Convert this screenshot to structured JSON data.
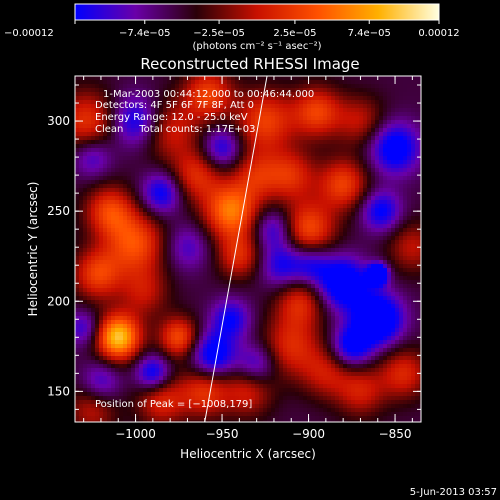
{
  "chart_data": {
    "type": "heatmap",
    "title": "Reconstructed RHESSI Image",
    "xlabel": "Heliocentric X (arcsec)",
    "ylabel": "Heliocentric Y (arcsec)",
    "xlim": [
      -1035,
      -835
    ],
    "ylim": [
      133,
      325
    ],
    "x_ticks": [
      -1000,
      -950,
      -900,
      -850
    ],
    "x_tick_labels": [
      "−1000",
      "−950",
      "−900",
      "−850"
    ],
    "y_ticks": [
      150,
      200,
      250,
      300
    ],
    "y_tick_labels": [
      "150",
      "200",
      "250",
      "300"
    ],
    "colorbar": {
      "min": -0.00012,
      "max": 0.00012,
      "ticks": [
        -0.00012,
        -7.4e-05,
        -2.5e-05,
        2.5e-05,
        7.4e-05,
        0.00012
      ],
      "tick_labels": [
        "−0.00012",
        "−7.4e−05",
        "−2.5e−05",
        "2.5e−05",
        "7.4e−05",
        "0.00012"
      ],
      "unit_label": "(photons cm⁻² s⁻¹ asec⁻²)",
      "colormap": [
        "#0000ff",
        "#6a00a8",
        "#2a0008",
        "#c81000",
        "#ff5000",
        "#ffb000",
        "#ffffe0"
      ]
    },
    "annotations": {
      "time_range": "1-Mar-2003 00:44:12.000 to 00:46:44.000",
      "detectors": "Detectors: 4F 5F 6F 7F 8F, Att 0",
      "energy_range": "Energy Range: 12.0 - 25.0 keV",
      "algorithm_counts": "Clean     Total counts: 1.17E+03",
      "peak": "Position of Peak = [−1008,179]"
    },
    "peak_position": [
      -1008,
      179
    ],
    "limb_line": [
      [
        -960,
        133
      ],
      [
        -924,
        325
      ]
    ],
    "blobs": [
      {
        "x": -1010,
        "y": 180,
        "v": 1.0,
        "r": 9
      },
      {
        "x": -1022,
        "y": 215,
        "v": 0.55,
        "r": 10
      },
      {
        "x": -1015,
        "y": 250,
        "v": 0.55,
        "r": 10
      },
      {
        "x": -1000,
        "y": 232,
        "v": 0.6,
        "r": 12
      },
      {
        "x": -995,
        "y": 205,
        "v": 0.35,
        "r": 10
      },
      {
        "x": -1028,
        "y": 300,
        "v": 0.5,
        "r": 12
      },
      {
        "x": -980,
        "y": 295,
        "v": 0.4,
        "r": 12
      },
      {
        "x": -965,
        "y": 270,
        "v": 0.45,
        "r": 10
      },
      {
        "x": -958,
        "y": 315,
        "v": 0.55,
        "r": 10
      },
      {
        "x": -975,
        "y": 180,
        "v": 0.6,
        "r": 8
      },
      {
        "x": -960,
        "y": 150,
        "v": 0.5,
        "r": 10
      },
      {
        "x": -985,
        "y": 145,
        "v": 0.45,
        "r": 10
      },
      {
        "x": -945,
        "y": 250,
        "v": 0.75,
        "r": 11
      },
      {
        "x": -940,
        "y": 225,
        "v": 0.45,
        "r": 9
      },
      {
        "x": -925,
        "y": 300,
        "v": 0.55,
        "r": 12
      },
      {
        "x": -930,
        "y": 270,
        "v": 0.4,
        "r": 10
      },
      {
        "x": -910,
        "y": 270,
        "v": 0.45,
        "r": 10
      },
      {
        "x": -900,
        "y": 240,
        "v": 0.6,
        "r": 11
      },
      {
        "x": -895,
        "y": 305,
        "v": 0.55,
        "r": 10
      },
      {
        "x": -880,
        "y": 265,
        "v": 0.55,
        "r": 10
      },
      {
        "x": -870,
        "y": 300,
        "v": 0.35,
        "r": 10
      },
      {
        "x": -905,
        "y": 200,
        "v": 0.45,
        "r": 10
      },
      {
        "x": -910,
        "y": 175,
        "v": 0.45,
        "r": 12
      },
      {
        "x": -890,
        "y": 160,
        "v": 0.35,
        "r": 10
      },
      {
        "x": -870,
        "y": 150,
        "v": 0.4,
        "r": 10
      },
      {
        "x": -845,
        "y": 160,
        "v": 0.45,
        "r": 10
      },
      {
        "x": -840,
        "y": 230,
        "v": 0.35,
        "r": 10
      },
      {
        "x": -935,
        "y": 150,
        "v": 0.4,
        "r": 10
      },
      {
        "x": -1025,
        "y": 140,
        "v": 0.35,
        "r": 10
      },
      {
        "x": -1020,
        "y": 155,
        "v": -0.35,
        "r": 8
      },
      {
        "x": -990,
        "y": 160,
        "v": -0.55,
        "r": 7
      },
      {
        "x": -955,
        "y": 170,
        "v": -0.6,
        "r": 9
      },
      {
        "x": -945,
        "y": 190,
        "v": -0.45,
        "r": 8
      },
      {
        "x": -985,
        "y": 260,
        "v": -0.5,
        "r": 8
      },
      {
        "x": -1000,
        "y": 300,
        "v": -0.5,
        "r": 10
      },
      {
        "x": -1025,
        "y": 280,
        "v": -0.35,
        "r": 8
      },
      {
        "x": -950,
        "y": 285,
        "v": -0.45,
        "r": 8
      },
      {
        "x": -920,
        "y": 240,
        "v": -0.4,
        "r": 8
      },
      {
        "x": -915,
        "y": 220,
        "v": -0.45,
        "r": 9
      },
      {
        "x": -898,
        "y": 220,
        "v": -0.4,
        "r": 8
      },
      {
        "x": -880,
        "y": 210,
        "v": -0.7,
        "r": 10
      },
      {
        "x": -860,
        "y": 190,
        "v": -0.8,
        "r": 10
      },
      {
        "x": -858,
        "y": 250,
        "v": -0.5,
        "r": 8
      },
      {
        "x": -850,
        "y": 285,
        "v": -0.6,
        "r": 10
      },
      {
        "x": -875,
        "y": 175,
        "v": -0.55,
        "r": 8
      },
      {
        "x": -860,
        "y": 215,
        "v": -1.0,
        "r": 4
      },
      {
        "x": -930,
        "y": 165,
        "v": -0.4,
        "r": 8
      },
      {
        "x": -1030,
        "y": 185,
        "v": -0.35,
        "r": 7
      },
      {
        "x": -970,
        "y": 230,
        "v": -0.3,
        "r": 9
      }
    ]
  },
  "footer": {
    "date": "5-Jun-2013 03:57"
  }
}
